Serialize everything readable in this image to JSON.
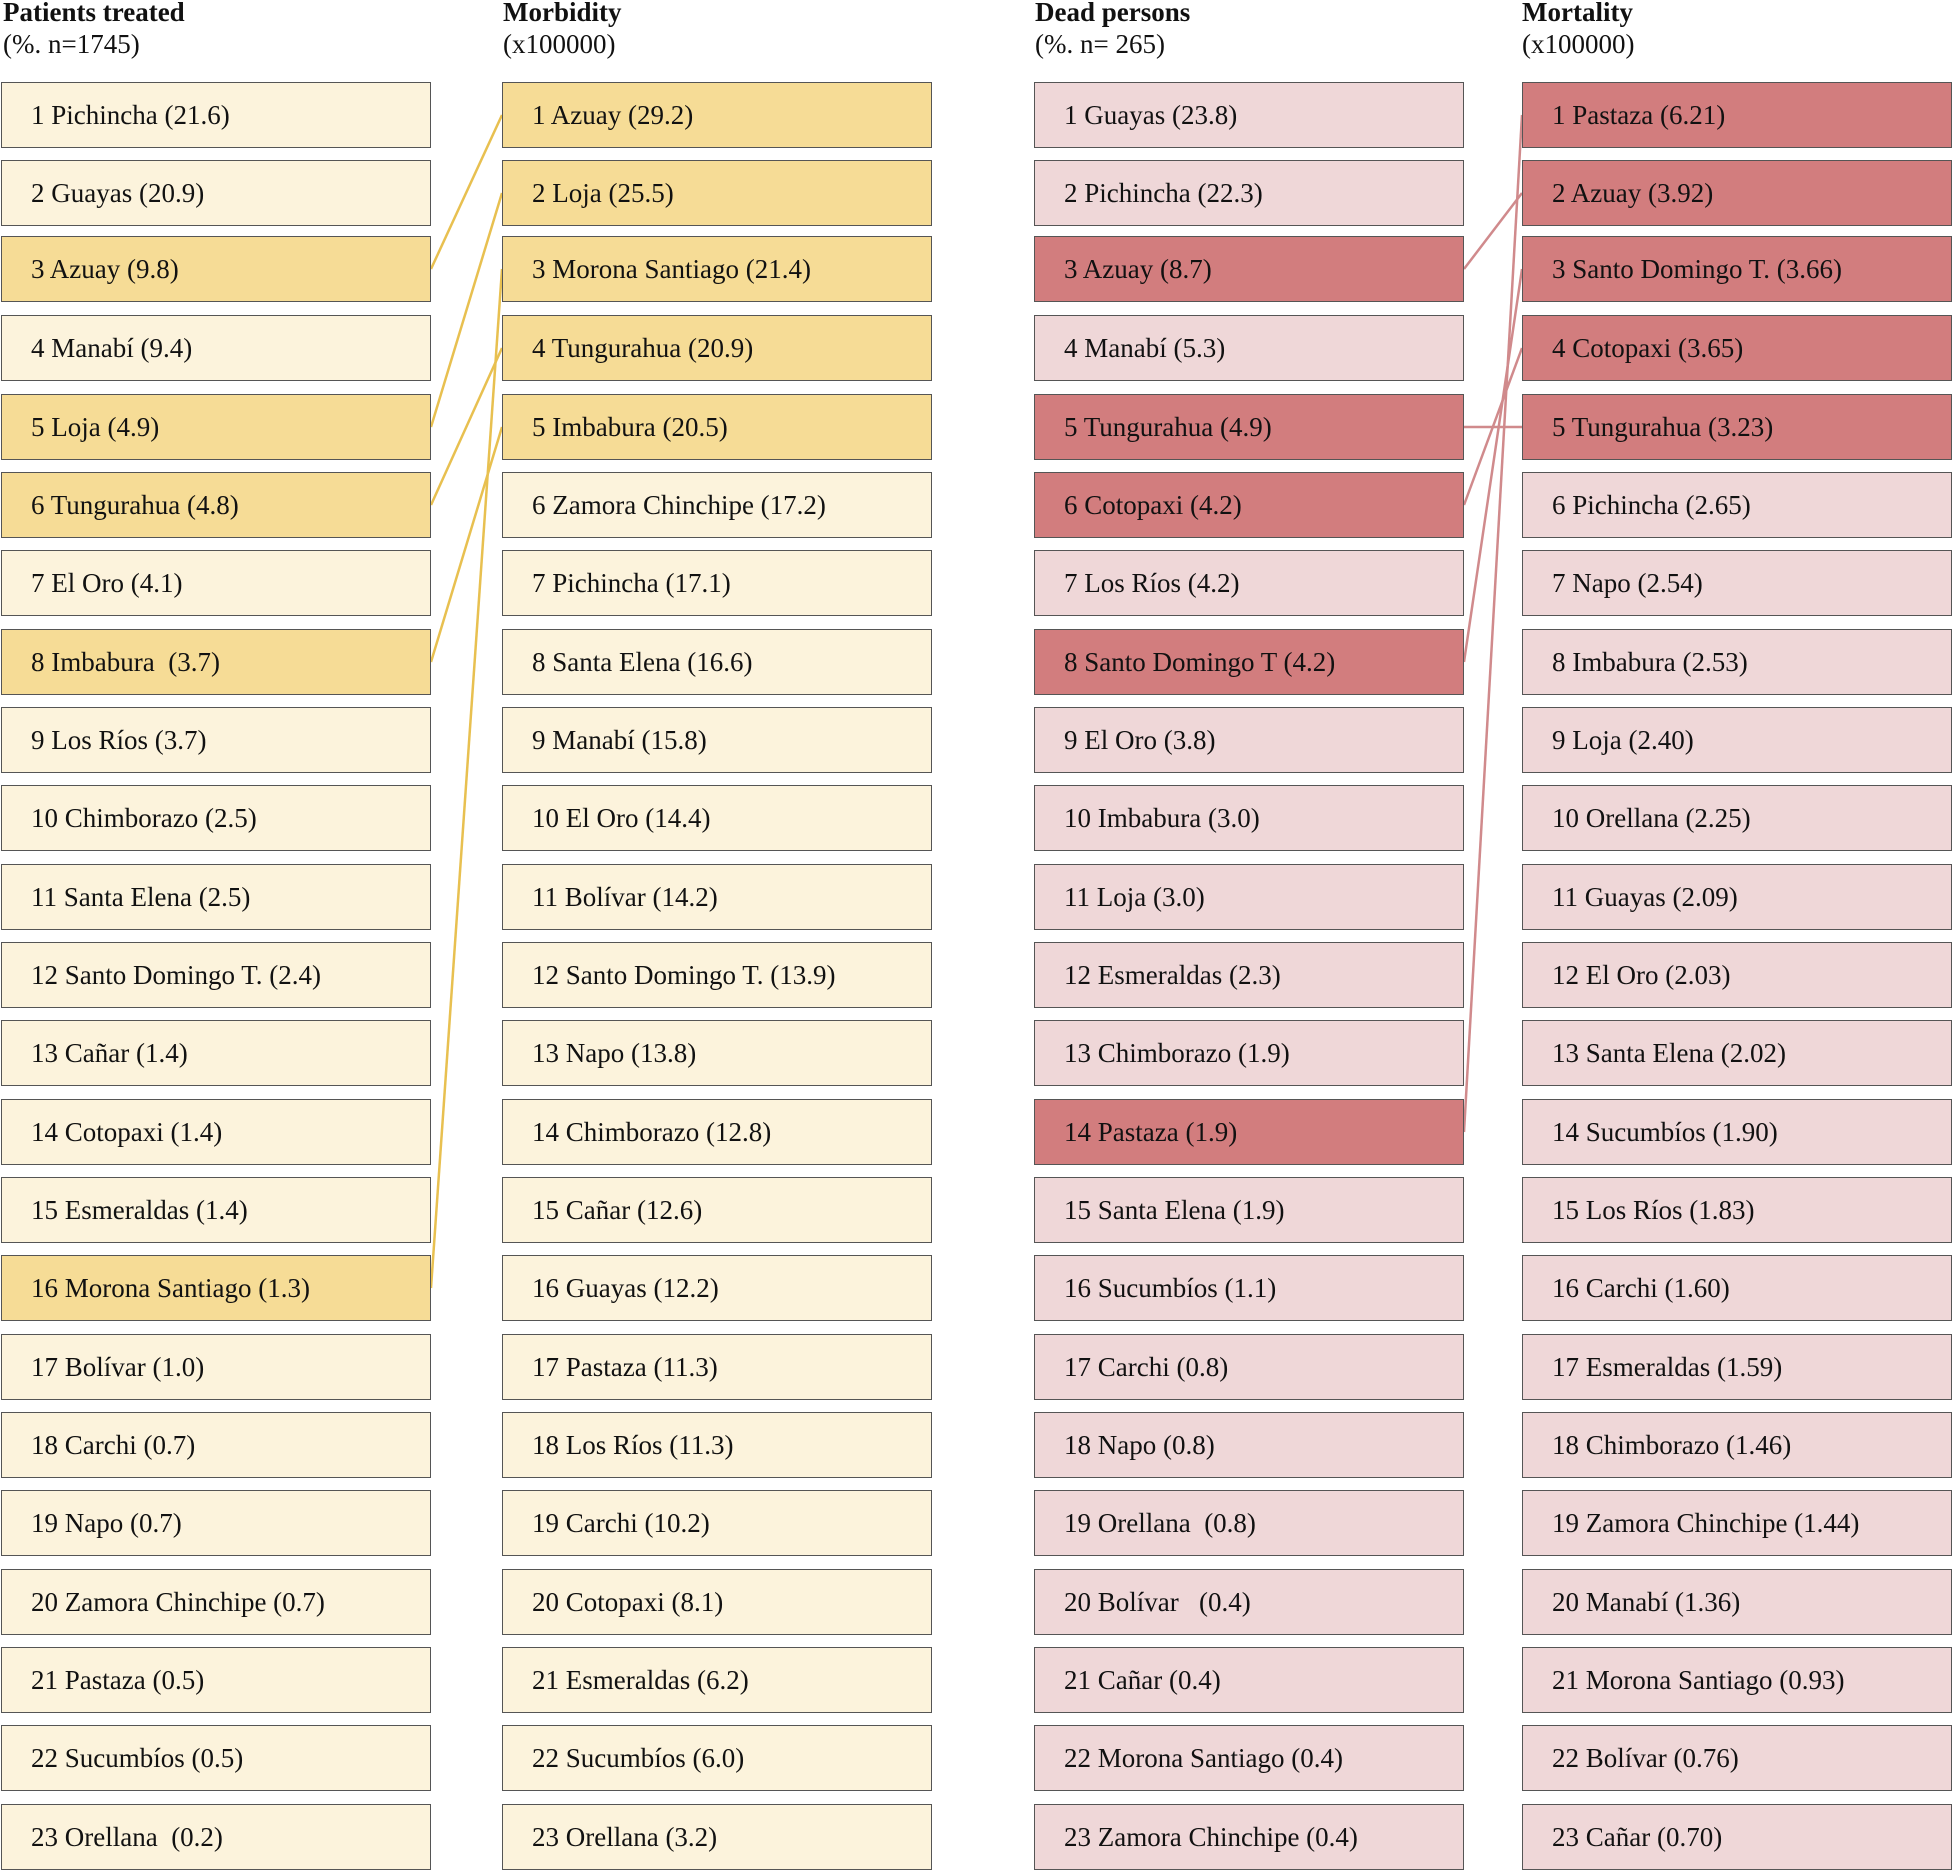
{
  "colors": {
    "yellow_light": "#fcf3dc",
    "yellow_highlight": "#f6dc96",
    "yellow_line": "#e8c050",
    "pink_light": "#efd7d8",
    "red_highlight": "#d27d7e",
    "red_line": "#d08a8c"
  },
  "columns": [
    {
      "id": "patients",
      "title": "Patients treated",
      "subtitle": "(%. n=1745)",
      "light": "yellow_light",
      "highlight": "yellow_highlight",
      "items": [
        {
          "label": "1 Pichincha (21.6)",
          "highlight": false
        },
        {
          "label": "2 Guayas (20.9)",
          "highlight": false
        },
        {
          "label": "3 Azuay (9.8)",
          "highlight": true
        },
        {
          "label": "4 Manabí (9.4)",
          "highlight": false
        },
        {
          "label": "5 Loja (4.9)",
          "highlight": true
        },
        {
          "label": "6 Tungurahua (4.8)",
          "highlight": true
        },
        {
          "label": "7 El Oro (4.1)",
          "highlight": false
        },
        {
          "label": "8 Imbabura  (3.7)",
          "highlight": true
        },
        {
          "label": "9 Los Ríos (3.7)",
          "highlight": false
        },
        {
          "label": "10 Chimborazo (2.5)",
          "highlight": false
        },
        {
          "label": "11 Santa Elena (2.5)",
          "highlight": false
        },
        {
          "label": "12 Santo Domingo T. (2.4)",
          "highlight": false
        },
        {
          "label": "13 Cañar (1.4)",
          "highlight": false
        },
        {
          "label": "14 Cotopaxi (1.4)",
          "highlight": false
        },
        {
          "label": "15 Esmeraldas (1.4)",
          "highlight": false
        },
        {
          "label": "16 Morona Santiago (1.3)",
          "highlight": true
        },
        {
          "label": "17 Bolívar (1.0)",
          "highlight": false
        },
        {
          "label": "18 Carchi (0.7)",
          "highlight": false
        },
        {
          "label": "19 Napo (0.7)",
          "highlight": false
        },
        {
          "label": "20 Zamora Chinchipe (0.7)",
          "highlight": false
        },
        {
          "label": "21 Pastaza (0.5)",
          "highlight": false
        },
        {
          "label": "22 Sucumbíos (0.5)",
          "highlight": false
        },
        {
          "label": "23 Orellana  (0.2)",
          "highlight": false
        }
      ]
    },
    {
      "id": "morbidity",
      "title": "Morbidity",
      "subtitle": "(x100000)",
      "light": "yellow_light",
      "highlight": "yellow_highlight",
      "items": [
        {
          "label": "1 Azuay (29.2)",
          "highlight": true
        },
        {
          "label": "2 Loja (25.5)",
          "highlight": true
        },
        {
          "label": "3 Morona Santiago (21.4)",
          "highlight": true
        },
        {
          "label": "4 Tungurahua (20.9)",
          "highlight": true
        },
        {
          "label": "5 Imbabura (20.5)",
          "highlight": true
        },
        {
          "label": "6 Zamora Chinchipe (17.2)",
          "highlight": false
        },
        {
          "label": "7 Pichincha (17.1)",
          "highlight": false
        },
        {
          "label": "8 Santa Elena (16.6)",
          "highlight": false
        },
        {
          "label": "9 Manabí (15.8)",
          "highlight": false
        },
        {
          "label": "10 El Oro (14.4)",
          "highlight": false
        },
        {
          "label": "11 Bolívar (14.2)",
          "highlight": false
        },
        {
          "label": "12 Santo Domingo T. (13.9)",
          "highlight": false
        },
        {
          "label": "13 Napo (13.8)",
          "highlight": false
        },
        {
          "label": "14 Chimborazo (12.8)",
          "highlight": false
        },
        {
          "label": "15 Cañar (12.6)",
          "highlight": false
        },
        {
          "label": "16 Guayas (12.2)",
          "highlight": false
        },
        {
          "label": "17 Pastaza (11.3)",
          "highlight": false
        },
        {
          "label": "18 Los Ríos (11.3)",
          "highlight": false
        },
        {
          "label": "19 Carchi (10.2)",
          "highlight": false
        },
        {
          "label": "20 Cotopaxi (8.1)",
          "highlight": false
        },
        {
          "label": "21 Esmeraldas (6.2)",
          "highlight": false
        },
        {
          "label": "22 Sucumbíos (6.0)",
          "highlight": false
        },
        {
          "label": "23 Orellana (3.2)",
          "highlight": false
        }
      ]
    },
    {
      "id": "dead",
      "title": "Dead persons",
      "subtitle": "(%. n= 265)",
      "light": "pink_light",
      "highlight": "red_highlight",
      "items": [
        {
          "label": "1 Guayas (23.8)",
          "highlight": false
        },
        {
          "label": "2 Pichincha (22.3)",
          "highlight": false
        },
        {
          "label": "3 Azuay (8.7)",
          "highlight": true
        },
        {
          "label": "4 Manabí (5.3)",
          "highlight": false
        },
        {
          "label": "5 Tungurahua (4.9)",
          "highlight": true
        },
        {
          "label": "6 Cotopaxi (4.2)",
          "highlight": true
        },
        {
          "label": "7 Los Ríos (4.2)",
          "highlight": false
        },
        {
          "label": "8 Santo Domingo T (4.2)",
          "highlight": true
        },
        {
          "label": "9 El Oro (3.8)",
          "highlight": false
        },
        {
          "label": "10 Imbabura (3.0)",
          "highlight": false
        },
        {
          "label": "11 Loja (3.0)",
          "highlight": false
        },
        {
          "label": "12 Esmeraldas (2.3)",
          "highlight": false
        },
        {
          "label": "13 Chimborazo (1.9)",
          "highlight": false
        },
        {
          "label": "14 Pastaza (1.9)",
          "highlight": true
        },
        {
          "label": "15 Santa Elena (1.9)",
          "highlight": false
        },
        {
          "label": "16 Sucumbíos (1.1)",
          "highlight": false
        },
        {
          "label": "17 Carchi (0.8)",
          "highlight": false
        },
        {
          "label": "18 Napo (0.8)",
          "highlight": false
        },
        {
          "label": "19 Orellana  (0.8)",
          "highlight": false
        },
        {
          "label": "20 Bolívar   (0.4)",
          "highlight": false
        },
        {
          "label": "21 Cañar (0.4)",
          "highlight": false
        },
        {
          "label": "22 Morona Santiago (0.4)",
          "highlight": false
        },
        {
          "label": "23 Zamora Chinchipe (0.4)",
          "highlight": false
        }
      ]
    },
    {
      "id": "mortality",
      "title": "Mortality",
      "subtitle": "(x100000)",
      "light": "pink_light",
      "highlight": "red_highlight",
      "items": [
        {
          "label": "1 Pastaza (6.21)",
          "highlight": true
        },
        {
          "label": "2 Azuay (3.92)",
          "highlight": true
        },
        {
          "label": "3 Santo Domingo T. (3.66)",
          "highlight": true
        },
        {
          "label": "4 Cotopaxi (3.65)",
          "highlight": true
        },
        {
          "label": "5 Tungurahua (3.23)",
          "highlight": true
        },
        {
          "label": "6 Pichincha (2.65)",
          "highlight": false
        },
        {
          "label": "7 Napo (2.54)",
          "highlight": false
        },
        {
          "label": "8 Imbabura (2.53)",
          "highlight": false
        },
        {
          "label": "9 Loja (2.40)",
          "highlight": false
        },
        {
          "label": "10 Orellana (2.25)",
          "highlight": false
        },
        {
          "label": "11 Guayas (2.09)",
          "highlight": false
        },
        {
          "label": "12 El Oro (2.03)",
          "highlight": false
        },
        {
          "label": "13 Santa Elena (2.02)",
          "highlight": false
        },
        {
          "label": "14 Sucumbíos (1.90)",
          "highlight": false
        },
        {
          "label": "15 Los Ríos (1.83)",
          "highlight": false
        },
        {
          "label": "16 Carchi (1.60)",
          "highlight": false
        },
        {
          "label": "17 Esmeraldas (1.59)",
          "highlight": false
        },
        {
          "label": "18 Chimborazo (1.46)",
          "highlight": false
        },
        {
          "label": "19 Zamora Chinchipe (1.44)",
          "highlight": false
        },
        {
          "label": "20 Manabí (1.36)",
          "highlight": false
        },
        {
          "label": "21 Morona Santiago (0.93)",
          "highlight": false
        },
        {
          "label": "22 Bolívar (0.76)",
          "highlight": false
        },
        {
          "label": "23 Cañar (0.70)",
          "highlight": false
        }
      ]
    }
  ],
  "links": [
    {
      "from_col": 0,
      "from_rank": 3,
      "to_col": 1,
      "to_rank": 1,
      "color": "yellow_line"
    },
    {
      "from_col": 0,
      "from_rank": 5,
      "to_col": 1,
      "to_rank": 2,
      "color": "yellow_line"
    },
    {
      "from_col": 0,
      "from_rank": 6,
      "to_col": 1,
      "to_rank": 4,
      "color": "yellow_line"
    },
    {
      "from_col": 0,
      "from_rank": 8,
      "to_col": 1,
      "to_rank": 5,
      "color": "yellow_line"
    },
    {
      "from_col": 0,
      "from_rank": 16,
      "to_col": 1,
      "to_rank": 3,
      "color": "yellow_line"
    },
    {
      "from_col": 2,
      "from_rank": 3,
      "to_col": 3,
      "to_rank": 2,
      "color": "red_line"
    },
    {
      "from_col": 2,
      "from_rank": 5,
      "to_col": 3,
      "to_rank": 5,
      "color": "red_line"
    },
    {
      "from_col": 2,
      "from_rank": 6,
      "to_col": 3,
      "to_rank": 4,
      "color": "red_line"
    },
    {
      "from_col": 2,
      "from_rank": 8,
      "to_col": 3,
      "to_rank": 3,
      "color": "red_line"
    },
    {
      "from_col": 2,
      "from_rank": 14,
      "to_col": 3,
      "to_rank": 1,
      "color": "red_line"
    }
  ]
}
